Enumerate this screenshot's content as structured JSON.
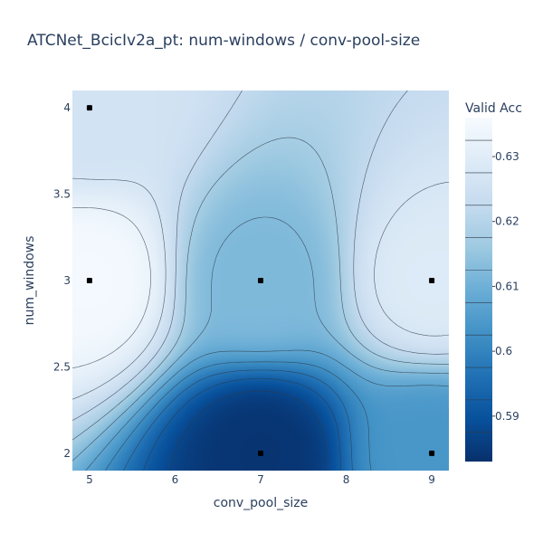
{
  "chart_data": {
    "type": "contour",
    "title": "ATCNet_BcicIv2a_pt: num-windows / conv-pool-size",
    "xlabel": "conv_pool_size",
    "ylabel": "num_windows",
    "xlim": [
      4.8,
      9.2
    ],
    "ylim": [
      1.9,
      4.1
    ],
    "x_ticks": [
      "5",
      "6",
      "7",
      "8",
      "9"
    ],
    "y_ticks": [
      "2",
      "2.5",
      "3",
      "3.5",
      "4"
    ],
    "colorbar": {
      "title": "Valid Acc",
      "range": [
        0.583,
        0.636
      ],
      "ticks": [
        "0.59",
        "0.6",
        "0.61",
        "0.62",
        "0.63"
      ],
      "colors": [
        "#08306b",
        "#08519c",
        "#2171b5",
        "#4292c6",
        "#6baed6",
        "#9ecae1",
        "#c6dbef",
        "#deebf7",
        "#f7fbff"
      ]
    },
    "points": [
      {
        "x": 5,
        "y": 4,
        "value": 0.626
      },
      {
        "x": 5,
        "y": 3,
        "value": 0.635
      },
      {
        "x": 7,
        "y": 3,
        "value": 0.612
      },
      {
        "x": 7,
        "y": 2,
        "value": 0.584
      },
      {
        "x": 9,
        "y": 3,
        "value": 0.629
      },
      {
        "x": 9,
        "y": 2,
        "value": 0.604
      }
    ]
  }
}
